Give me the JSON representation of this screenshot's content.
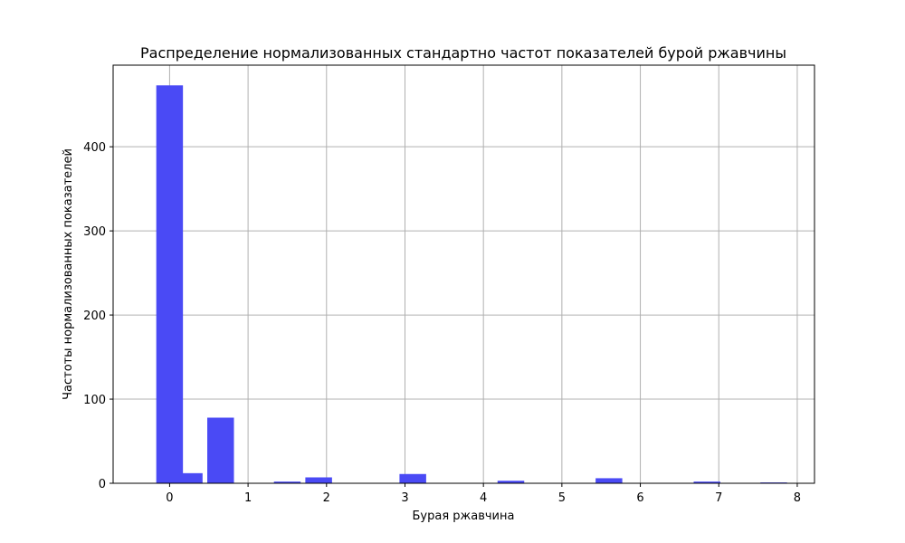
{
  "chart_data": {
    "type": "bar",
    "title": "Распределение нормализованных стандартно частот показателей бурой ржавчины",
    "xlabel": "Бурая ржавчина",
    "ylabel": "Частоты нормализованных показателей",
    "bar_color": "#4a4af5",
    "grid": true,
    "xlim": [
      -0.72,
      8.22
    ],
    "ylim": [
      0,
      497
    ],
    "xticks": [
      0,
      1,
      2,
      3,
      4,
      5,
      6,
      7,
      8
    ],
    "yticks": [
      0,
      100,
      200,
      300,
      400
    ],
    "bars": [
      {
        "x": 0.0,
        "value": 473
      },
      {
        "x": 0.25,
        "value": 12
      },
      {
        "x": 0.65,
        "value": 78
      },
      {
        "x": 1.5,
        "value": 2
      },
      {
        "x": 1.9,
        "value": 7
      },
      {
        "x": 3.1,
        "value": 11
      },
      {
        "x": 4.35,
        "value": 3
      },
      {
        "x": 5.6,
        "value": 6
      },
      {
        "x": 6.85,
        "value": 2
      },
      {
        "x": 7.7,
        "value": 1
      }
    ]
  }
}
